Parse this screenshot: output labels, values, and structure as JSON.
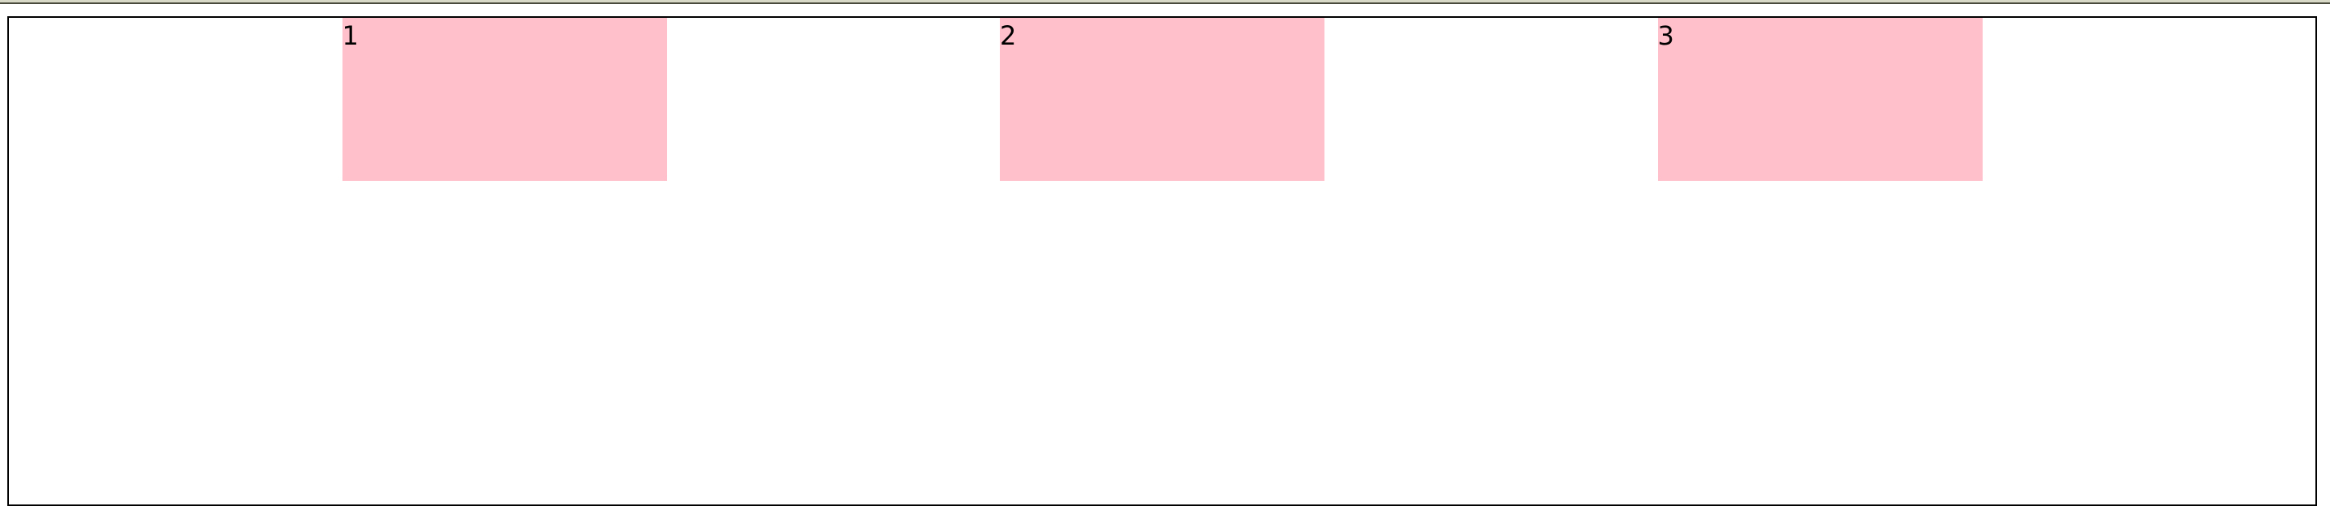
{
  "colors": {
    "box_background": "#ffc0cb",
    "container_border": "#000000",
    "top_bar": "#d9d9c8"
  },
  "boxes": [
    {
      "label": "1"
    },
    {
      "label": "2"
    },
    {
      "label": "3"
    }
  ]
}
